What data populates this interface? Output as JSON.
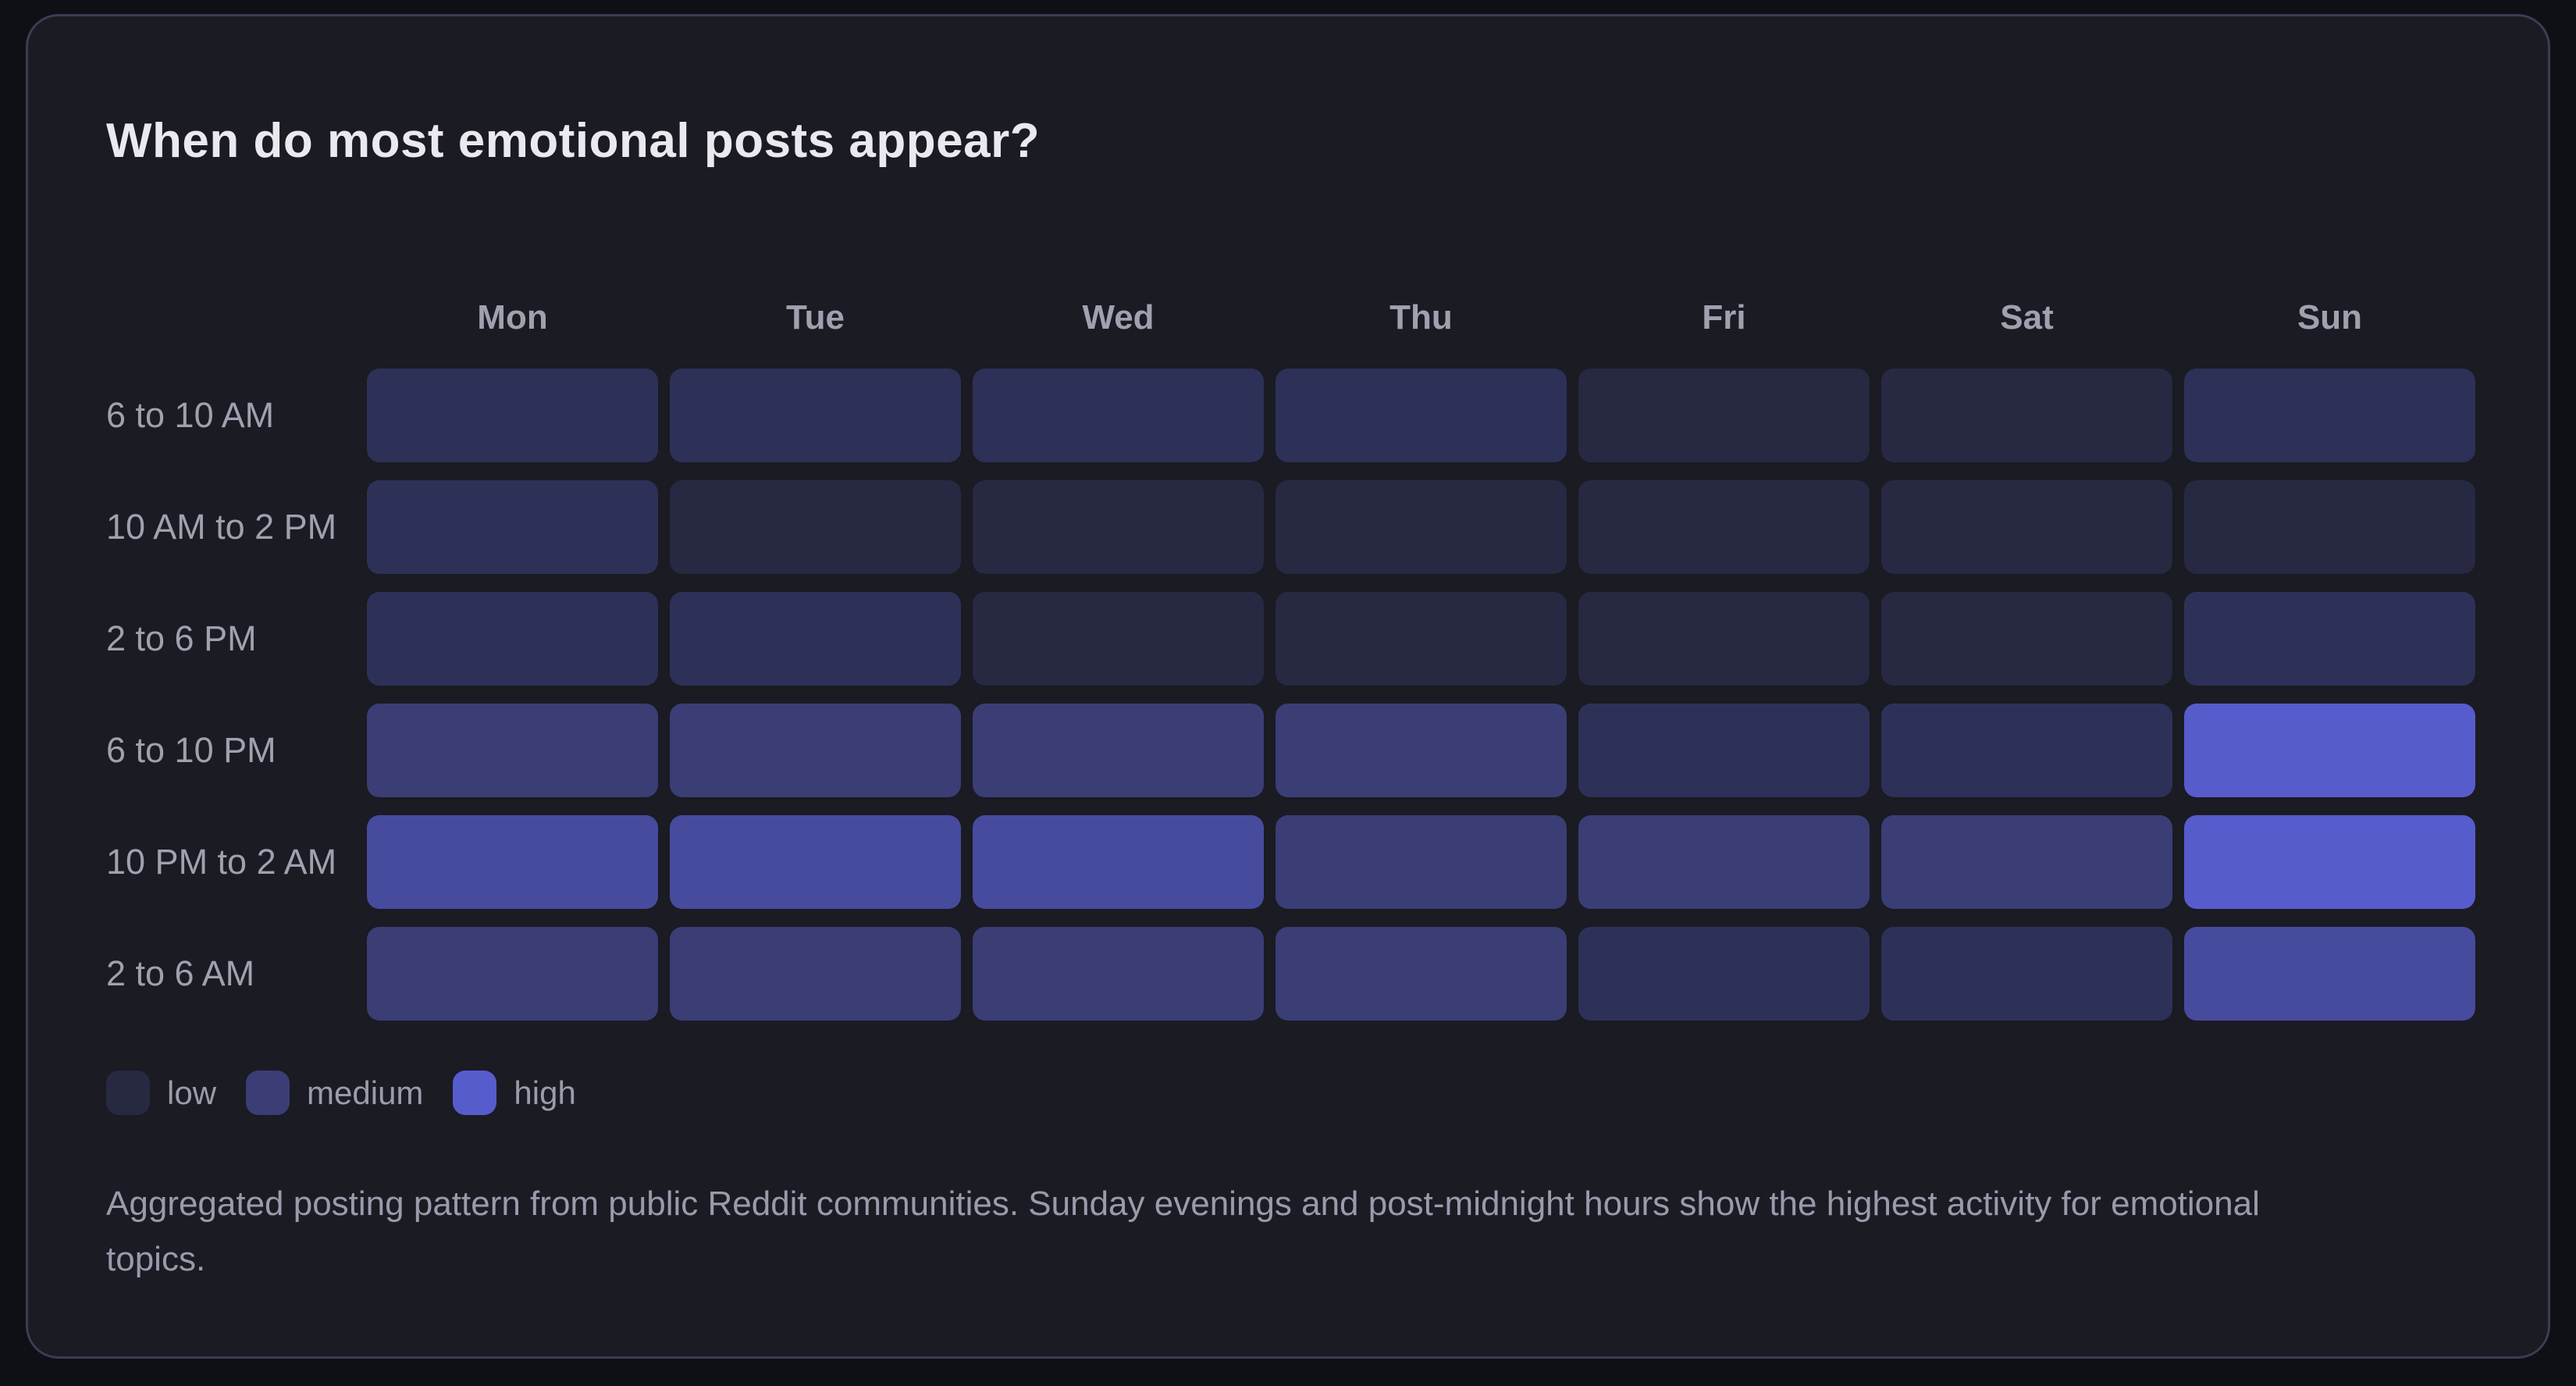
{
  "card": {
    "title": "When do most emotional posts appear?"
  },
  "chart_data": {
    "type": "heatmap",
    "title": "When do most emotional posts appear?",
    "columns": [
      "Mon",
      "Tue",
      "Wed",
      "Thu",
      "Fri",
      "Sat",
      "Sun"
    ],
    "rows": [
      "6 to 10 AM",
      "10 AM to 2 PM",
      "2 to 6 PM",
      "6 to 10 PM",
      "10 PM to 2 AM",
      "2 to 6 AM"
    ],
    "levels": [
      [
        1,
        1,
        1,
        1,
        0,
        0,
        1
      ],
      [
        1,
        0,
        0,
        0,
        0,
        0,
        0
      ],
      [
        1,
        1,
        0,
        0,
        0,
        0,
        1
      ],
      [
        2,
        2,
        2,
        2,
        1,
        1,
        4
      ],
      [
        3,
        3,
        3,
        2,
        2,
        2,
        4
      ],
      [
        2,
        2,
        2,
        2,
        1,
        1,
        3
      ]
    ],
    "level_scale_note": "0 = lowest activity, 4 = highest activity",
    "palette": [
      "#262941",
      "#2D3158",
      "#3A3E75",
      "#474B9D",
      "#565CCB"
    ],
    "legend": [
      {
        "label": "low",
        "level": 0
      },
      {
        "label": "medium",
        "level": 2
      },
      {
        "label": "high",
        "level": 4
      }
    ],
    "legend_position": "bottom-left",
    "grid": "off"
  },
  "caption": "Aggregated posting pattern from public Reddit communities. Sunday evenings and post-midnight hours show the highest activity for emotional topics.",
  "colors": {
    "page_background": "#0f1015",
    "card_background": "#1a1b23",
    "card_border": "#3a3d52",
    "title_text": "#e9e9ef",
    "axis_text": "#9fa1ae",
    "caption_text": "#999bab"
  }
}
